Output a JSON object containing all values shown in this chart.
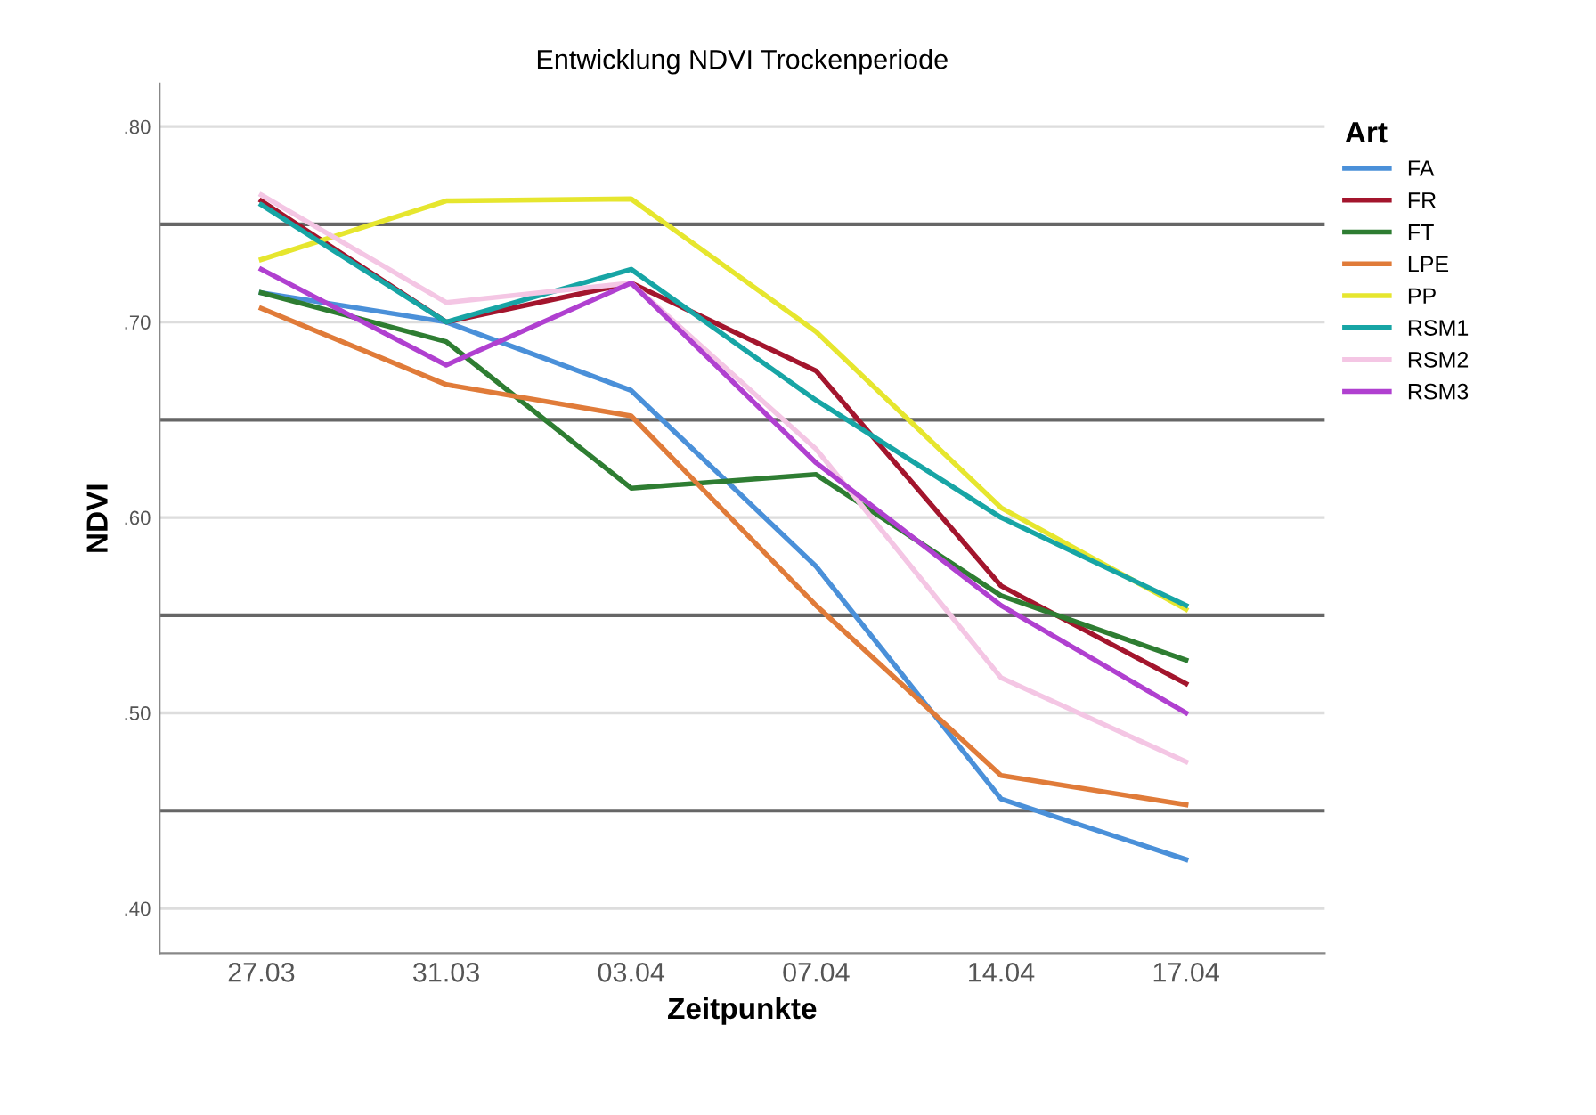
{
  "chart_data": {
    "type": "line",
    "title": "Entwicklung NDVI Trockenperiode",
    "xlabel": "Zeitpunkte",
    "ylabel": "NDVI",
    "legend_title": "Art",
    "categories": [
      "27.03",
      "31.03",
      "03.04",
      "07.04",
      "14.04",
      "17.04"
    ],
    "series": [
      {
        "name": "FA",
        "color": "#4a90d9",
        "values": [
          0.715,
          0.7,
          0.665,
          0.575,
          0.456,
          0.425
        ]
      },
      {
        "name": "FR",
        "color": "#a3152d",
        "values": [
          0.762,
          0.7,
          0.72,
          0.675,
          0.565,
          0.515
        ]
      },
      {
        "name": "FT",
        "color": "#2e7d32",
        "values": [
          0.715,
          0.69,
          0.615,
          0.622,
          0.56,
          0.527
        ]
      },
      {
        "name": "LPE",
        "color": "#e07b39",
        "values": [
          0.707,
          0.668,
          0.652,
          0.555,
          0.468,
          0.453
        ]
      },
      {
        "name": "PP",
        "color": "#e6e62e",
        "values": [
          0.732,
          0.762,
          0.763,
          0.695,
          0.605,
          0.553
        ]
      },
      {
        "name": "RSM1",
        "color": "#17a5a5",
        "values": [
          0.76,
          0.7,
          0.727,
          0.66,
          0.6,
          0.555
        ]
      },
      {
        "name": "RSM2",
        "color": "#f4c6e4",
        "values": [
          0.765,
          0.71,
          0.72,
          0.635,
          0.518,
          0.475
        ]
      },
      {
        "name": "RSM3",
        "color": "#b040d0",
        "values": [
          0.727,
          0.678,
          0.72,
          0.628,
          0.555,
          0.5
        ]
      }
    ],
    "ylim": [
      0.377,
      0.822
    ],
    "yticks": [
      {
        "value": 0.4,
        "label": ".40"
      },
      {
        "value": 0.5,
        "label": ".50"
      },
      {
        "value": 0.6,
        "label": ".60"
      },
      {
        "value": 0.7,
        "label": ".70"
      },
      {
        "value": 0.8,
        "label": ".80"
      }
    ],
    "ref_lines": [
      {
        "axis": "y",
        "value": 0.45,
        "color": "#666666"
      },
      {
        "axis": "y",
        "value": 0.55,
        "color": "#666666"
      },
      {
        "axis": "y",
        "value": 0.65,
        "color": "#666666"
      },
      {
        "axis": "y",
        "value": 0.75,
        "color": "#666666"
      }
    ],
    "grid": "y",
    "legend": "right"
  }
}
